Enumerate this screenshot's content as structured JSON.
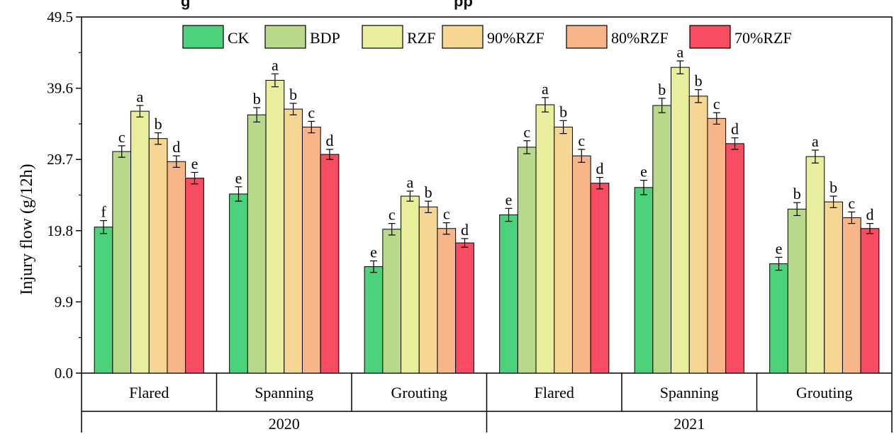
{
  "header_text": "g",
  "header_text_right": "pp",
  "chart_data": {
    "type": "bar",
    "ylabel": "Injury flow (g/12h)",
    "ylim": [
      0,
      49.5
    ],
    "yticks": [
      "0.0",
      "9.9",
      "19.8",
      "29.7",
      "39.6",
      "49.5"
    ],
    "ytick_values": [
      0,
      9.9,
      19.8,
      29.7,
      39.6,
      49.5
    ],
    "groups": [
      {
        "year": "2020",
        "stage": "Flared"
      },
      {
        "year": "2020",
        "stage": "Spanning"
      },
      {
        "year": "2020",
        "stage": "Grouting"
      },
      {
        "year": "2021",
        "stage": "Flared"
      },
      {
        "year": "2021",
        "stage": "Spanning"
      },
      {
        "year": "2021",
        "stage": "Grouting"
      }
    ],
    "years": [
      "2020",
      "2021"
    ],
    "series": [
      {
        "name": "CK",
        "color": "#4cd27a",
        "values": [
          20.3,
          24.9,
          14.8,
          22.0,
          25.8,
          15.2
        ],
        "errors": [
          0.9,
          1.0,
          0.8,
          0.9,
          1.0,
          0.9
        ],
        "letters": [
          "f",
          "e",
          "e",
          "e",
          "e",
          "e"
        ]
      },
      {
        "name": "BDP",
        "color": "#b9d98a",
        "values": [
          30.8,
          35.9,
          20.0,
          31.4,
          37.2,
          22.8
        ],
        "errors": [
          0.8,
          1.0,
          0.8,
          0.9,
          1.0,
          0.9
        ],
        "letters": [
          "c",
          "b",
          "c",
          "c",
          "b",
          "b"
        ]
      },
      {
        "name": "RZF",
        "color": "#e9ee9c",
        "values": [
          36.4,
          40.7,
          24.6,
          37.3,
          42.5,
          30.1
        ],
        "errors": [
          0.8,
          0.9,
          0.7,
          1.0,
          0.9,
          0.9
        ],
        "letters": [
          "a",
          "a",
          "a",
          "a",
          "a",
          "a"
        ]
      },
      {
        "name": "90%RZF",
        "color": "#f7d694",
        "values": [
          32.6,
          36.7,
          23.1,
          34.2,
          38.5,
          23.8
        ],
        "errors": [
          0.8,
          0.8,
          0.8,
          0.9,
          0.9,
          0.8
        ],
        "letters": [
          "b",
          "b",
          "b",
          "b",
          "b",
          "b"
        ]
      },
      {
        "name": "80%RZF",
        "color": "#f7b58a",
        "values": [
          29.4,
          34.2,
          20.1,
          30.2,
          35.4,
          21.6
        ],
        "errors": [
          0.8,
          0.8,
          0.8,
          0.9,
          0.8,
          0.8
        ],
        "letters": [
          "d",
          "c",
          "c",
          "c",
          "c",
          "c"
        ]
      },
      {
        "name": "70%RZF",
        "color": "#f74c62",
        "values": [
          27.1,
          30.4,
          18.1,
          26.4,
          31.9,
          20.1
        ],
        "errors": [
          0.8,
          0.7,
          0.6,
          0.8,
          0.8,
          0.7
        ],
        "letters": [
          "e",
          "d",
          "d",
          "d",
          "d",
          "d"
        ]
      }
    ],
    "legend_placement": "top",
    "grid": false
  }
}
